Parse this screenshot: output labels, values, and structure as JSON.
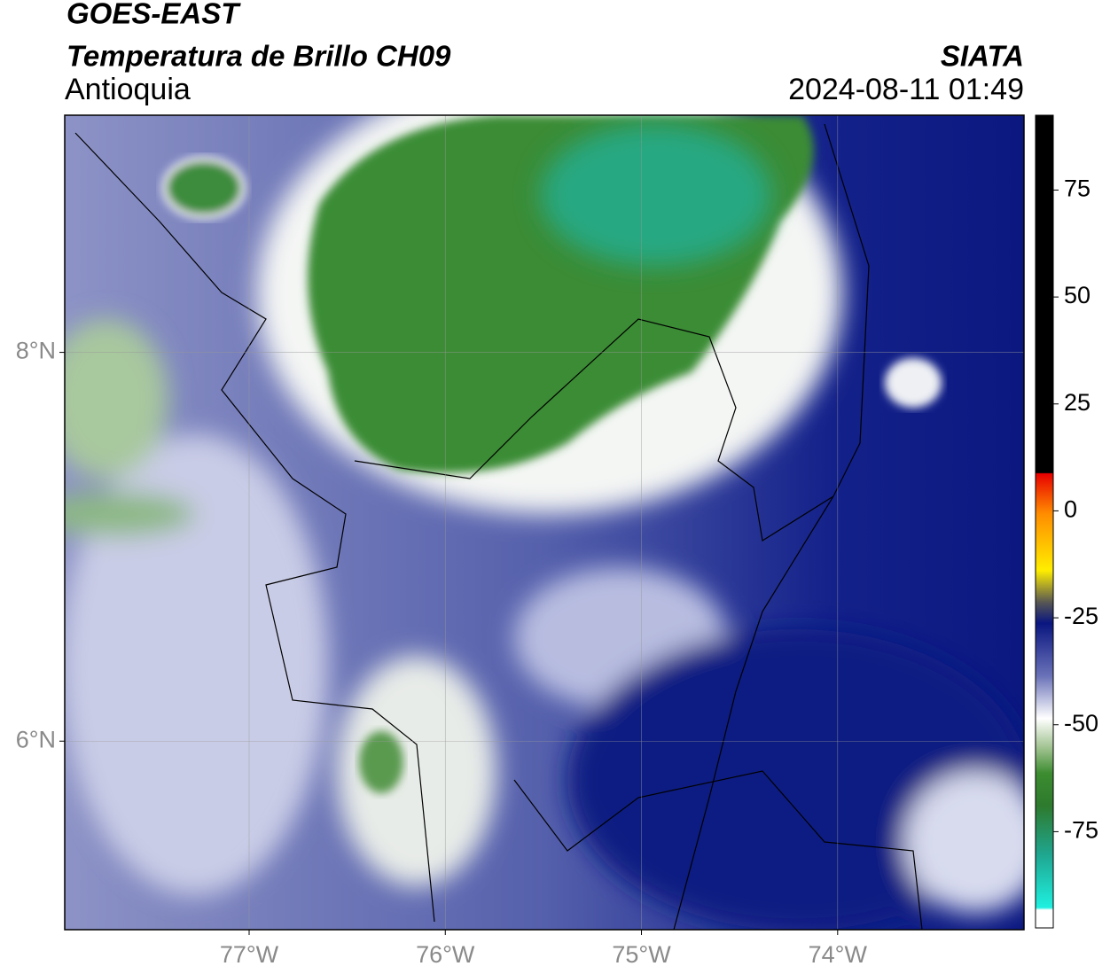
{
  "header": {
    "title": "GOES-EAST",
    "subtitle": "Temperatura de Brillo CH09",
    "region": "Antioquia",
    "source": "SIATA",
    "datetime": "2024-08-11 01:49"
  },
  "map": {
    "xlim": [
      -77.94,
      -73.05
    ],
    "ylim": [
      5.03,
      9.22
    ],
    "xticks": [
      {
        "value": -77,
        "label": "77°W"
      },
      {
        "value": -76,
        "label": "76°W"
      },
      {
        "value": -75,
        "label": "75°W"
      },
      {
        "value": -74,
        "label": "74°W"
      }
    ],
    "yticks": [
      {
        "value": 8,
        "label": "8°N"
      },
      {
        "value": 6,
        "label": "6°N"
      }
    ]
  },
  "colorbar": {
    "range": [
      -97.5,
      92.5
    ],
    "ticks": [
      75,
      50,
      25,
      0,
      -25,
      -50,
      -75
    ]
  }
}
